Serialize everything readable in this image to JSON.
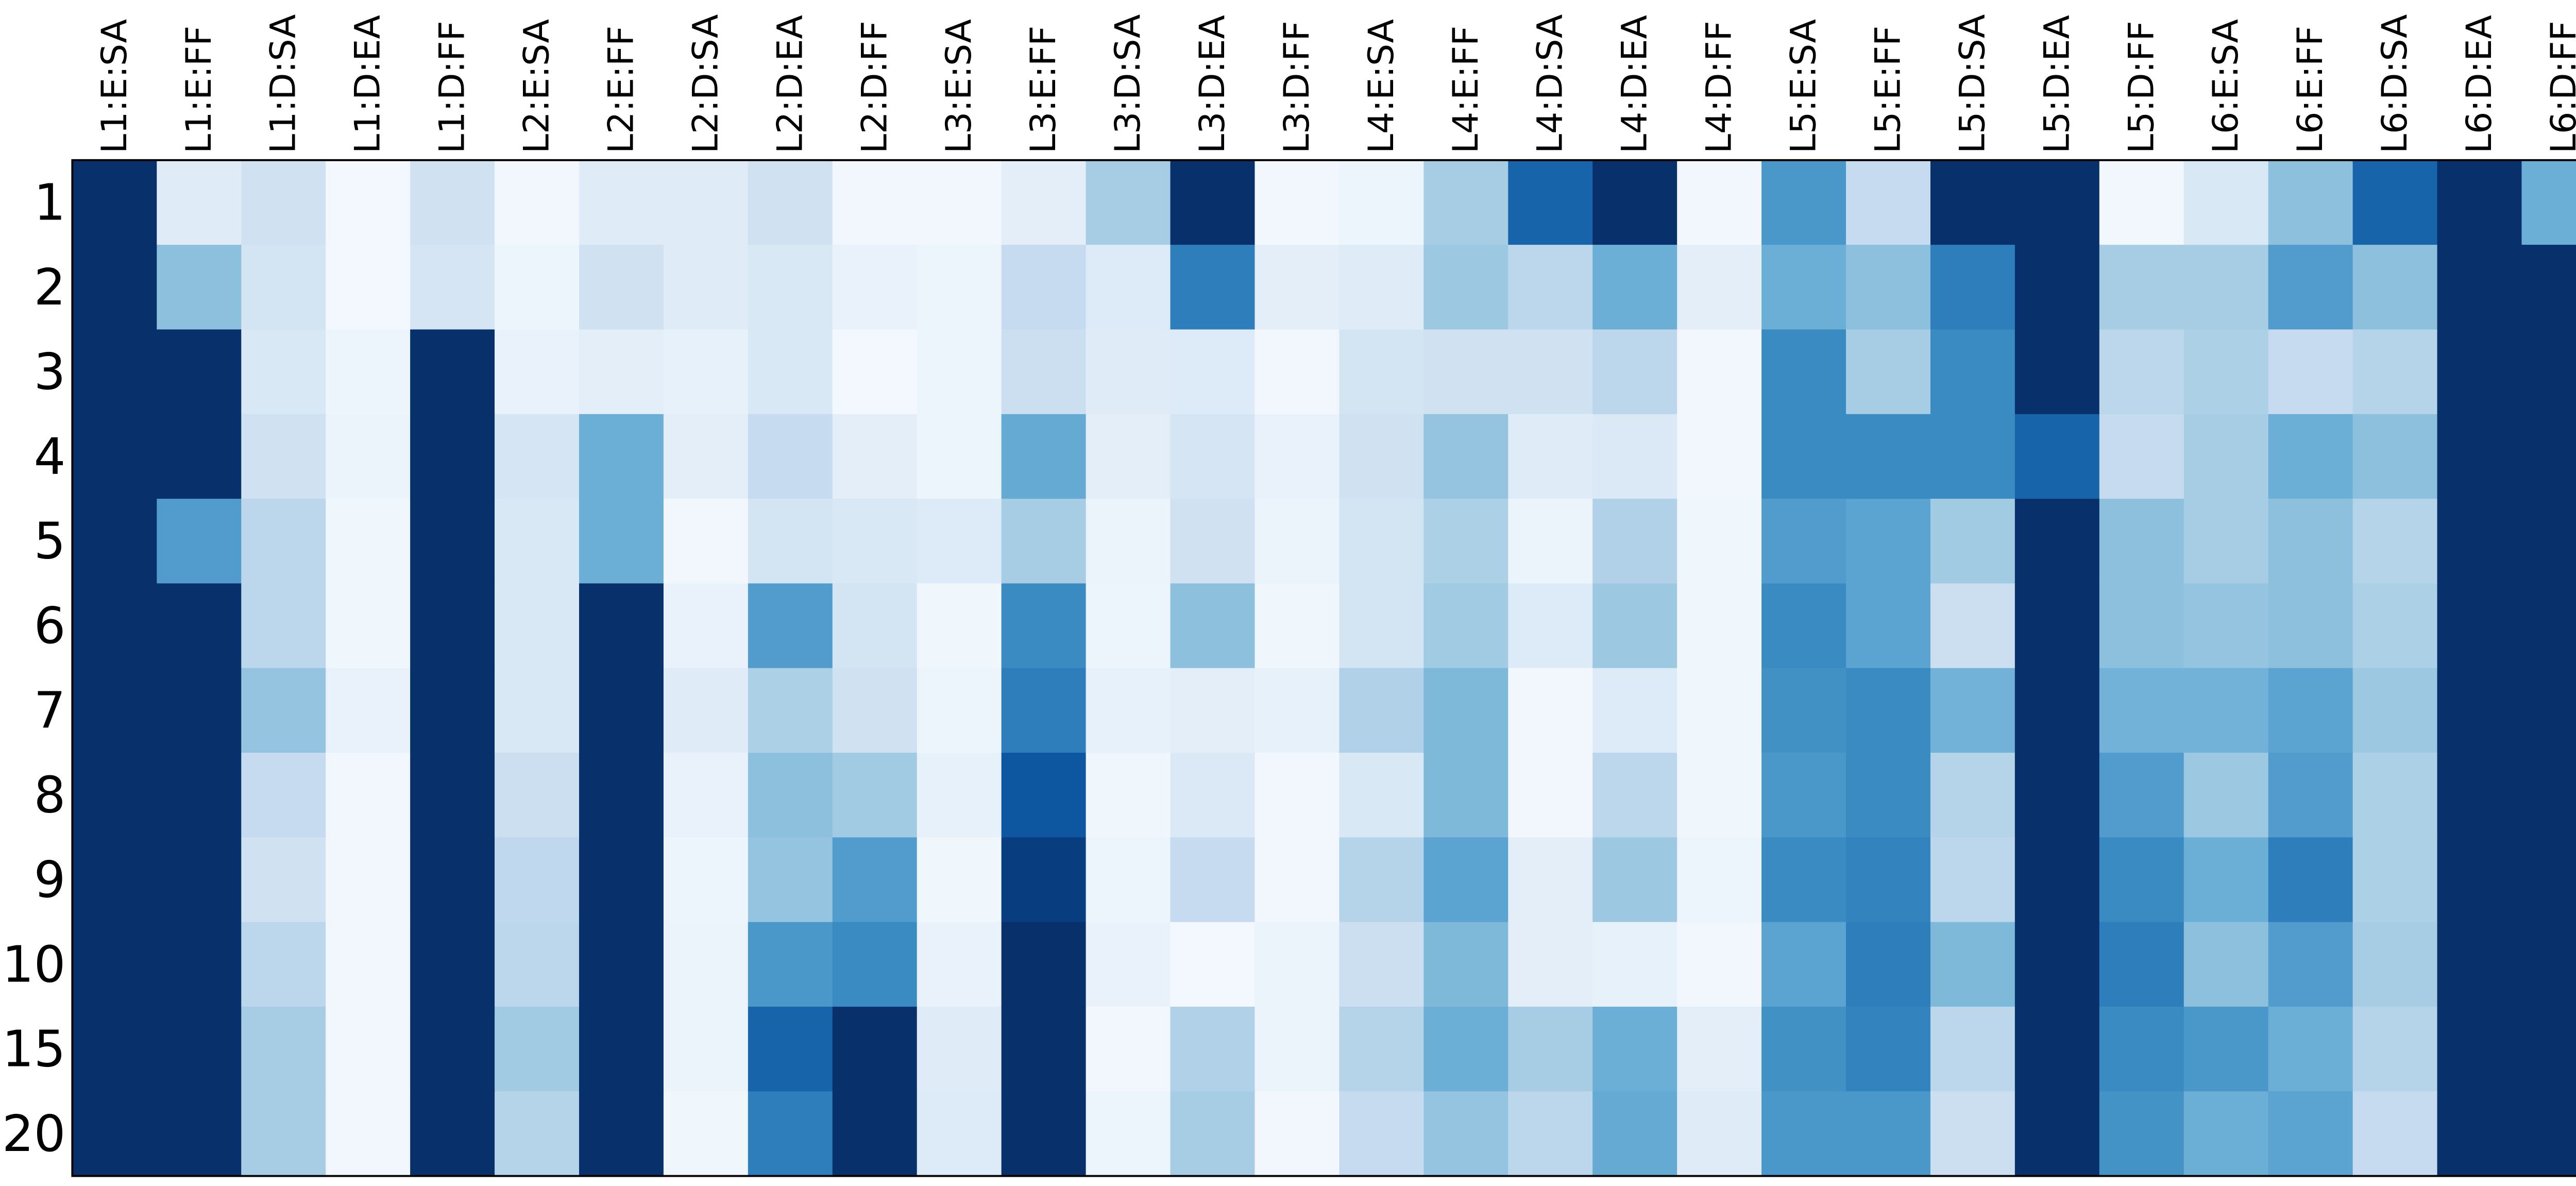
{
  "chart_data": {
    "type": "heatmap",
    "colormap": "Blues",
    "vlim": [
      0,
      1
    ],
    "x": [
      "L1:E:SA",
      "L1:E:FF",
      "L1:D:SA",
      "L1:D:EA",
      "L1:D:FF",
      "L2:E:SA",
      "L2:E:FF",
      "L2:D:SA",
      "L2:D:EA",
      "L2:D:FF",
      "L3:E:SA",
      "L3:E:FF",
      "L3:D:SA",
      "L3:D:EA",
      "L3:D:FF",
      "L4:E:SA",
      "L4:E:FF",
      "L4:D:SA",
      "L4:D:EA",
      "L4:D:FF",
      "L5:E:SA",
      "L5:E:FF",
      "L5:D:SA",
      "L5:D:EA",
      "L5:D:FF",
      "L6:E:SA",
      "L6:E:FF",
      "L6:D:SA",
      "L6:D:EA",
      "L6:D:FF"
    ],
    "y": [
      1,
      2,
      3,
      4,
      5,
      6,
      7,
      8,
      9,
      10,
      15,
      20
    ],
    "z": [
      [
        1,
        0.12,
        0.2,
        0.02,
        0.2,
        0.03,
        0.12,
        0.12,
        0.2,
        0.03,
        0.03,
        0.1,
        0.35,
        1,
        0.03,
        0.05,
        0.35,
        0.8,
        1,
        0.03,
        0.6,
        0.25,
        1,
        1,
        0.03,
        0.15,
        0.42,
        0.8,
        1,
        0.5
      ],
      [
        1,
        0.42,
        0.18,
        0.02,
        0.17,
        0.05,
        0.2,
        0.12,
        0.15,
        0.07,
        0.05,
        0.25,
        0.13,
        0.7,
        0.1,
        0.12,
        0.38,
        0.28,
        0.5,
        0.1,
        0.5,
        0.42,
        0.7,
        1,
        0.35,
        0.35,
        0.58,
        0.42,
        1,
        1
      ],
      [
        1,
        1,
        0.15,
        0.05,
        1,
        0.07,
        0.1,
        0.08,
        0.15,
        0.02,
        0.05,
        0.22,
        0.12,
        0.13,
        0.03,
        0.18,
        0.2,
        0.2,
        0.28,
        0.03,
        0.65,
        0.35,
        0.65,
        1,
        0.28,
        0.33,
        0.25,
        0.3,
        1,
        1
      ],
      [
        1,
        1,
        0.2,
        0.06,
        1,
        0.17,
        0.5,
        0.1,
        0.25,
        0.1,
        0.05,
        0.52,
        0.1,
        0.17,
        0.07,
        0.2,
        0.4,
        0.12,
        0.14,
        0.03,
        0.65,
        0.65,
        0.65,
        0.8,
        0.25,
        0.35,
        0.5,
        0.42,
        1,
        1
      ],
      [
        1,
        0.58,
        0.28,
        0.04,
        1,
        0.15,
        0.5,
        0.03,
        0.18,
        0.15,
        0.13,
        0.35,
        0.06,
        0.2,
        0.06,
        0.18,
        0.33,
        0.06,
        0.32,
        0.04,
        0.58,
        0.55,
        0.37,
        1,
        0.42,
        0.35,
        0.42,
        0.3,
        1,
        1
      ],
      [
        1,
        1,
        0.28,
        0.04,
        1,
        0.15,
        1,
        0.07,
        0.58,
        0.18,
        0.04,
        0.65,
        0.05,
        0.42,
        0.04,
        0.18,
        0.37,
        0.13,
        0.38,
        0.04,
        0.65,
        0.55,
        0.22,
        1,
        0.42,
        0.4,
        0.42,
        0.33,
        1,
        1
      ],
      [
        1,
        1,
        0.4,
        0.07,
        1,
        0.15,
        1,
        0.12,
        0.33,
        0.2,
        0.05,
        0.7,
        0.08,
        0.1,
        0.08,
        0.32,
        0.45,
        0.03,
        0.13,
        0.04,
        0.63,
        0.65,
        0.48,
        1,
        0.48,
        0.48,
        0.55,
        0.38,
        1,
        1
      ],
      [
        1,
        1,
        0.25,
        0.03,
        1,
        0.22,
        1,
        0.07,
        0.42,
        0.37,
        0.08,
        0.85,
        0.04,
        0.14,
        0.03,
        0.15,
        0.45,
        0.03,
        0.28,
        0.04,
        0.6,
        0.65,
        0.3,
        1,
        0.58,
        0.38,
        0.58,
        0.33,
        1,
        1
      ],
      [
        1,
        1,
        0.2,
        0.03,
        1,
        0.27,
        1,
        0.05,
        0.4,
        0.58,
        0.04,
        0.95,
        0.05,
        0.25,
        0.03,
        0.3,
        0.55,
        0.1,
        0.38,
        0.05,
        0.65,
        0.68,
        0.28,
        1,
        0.65,
        0.5,
        0.7,
        0.33,
        1,
        1
      ],
      [
        1,
        1,
        0.28,
        0.03,
        1,
        0.28,
        1,
        0.06,
        0.6,
        0.65,
        0.07,
        1,
        0.07,
        0.02,
        0.06,
        0.22,
        0.45,
        0.1,
        0.08,
        0.03,
        0.55,
        0.7,
        0.45,
        1,
        0.7,
        0.42,
        0.58,
        0.35,
        1,
        1
      ],
      [
        1,
        1,
        0.35,
        0.03,
        1,
        0.37,
        1,
        0.06,
        0.8,
        1,
        0.12,
        1,
        0.03,
        0.32,
        0.06,
        0.3,
        0.5,
        0.35,
        0.5,
        0.1,
        0.63,
        0.68,
        0.28,
        1,
        0.65,
        0.6,
        0.5,
        0.3,
        1,
        1
      ],
      [
        1,
        1,
        0.35,
        0.03,
        1,
        0.3,
        1,
        0.04,
        0.7,
        1,
        0.13,
        1,
        0.05,
        0.35,
        0.03,
        0.25,
        0.4,
        0.28,
        0.52,
        0.12,
        0.6,
        0.6,
        0.22,
        1,
        0.62,
        0.5,
        0.55,
        0.25,
        1,
        1
      ]
    ]
  }
}
